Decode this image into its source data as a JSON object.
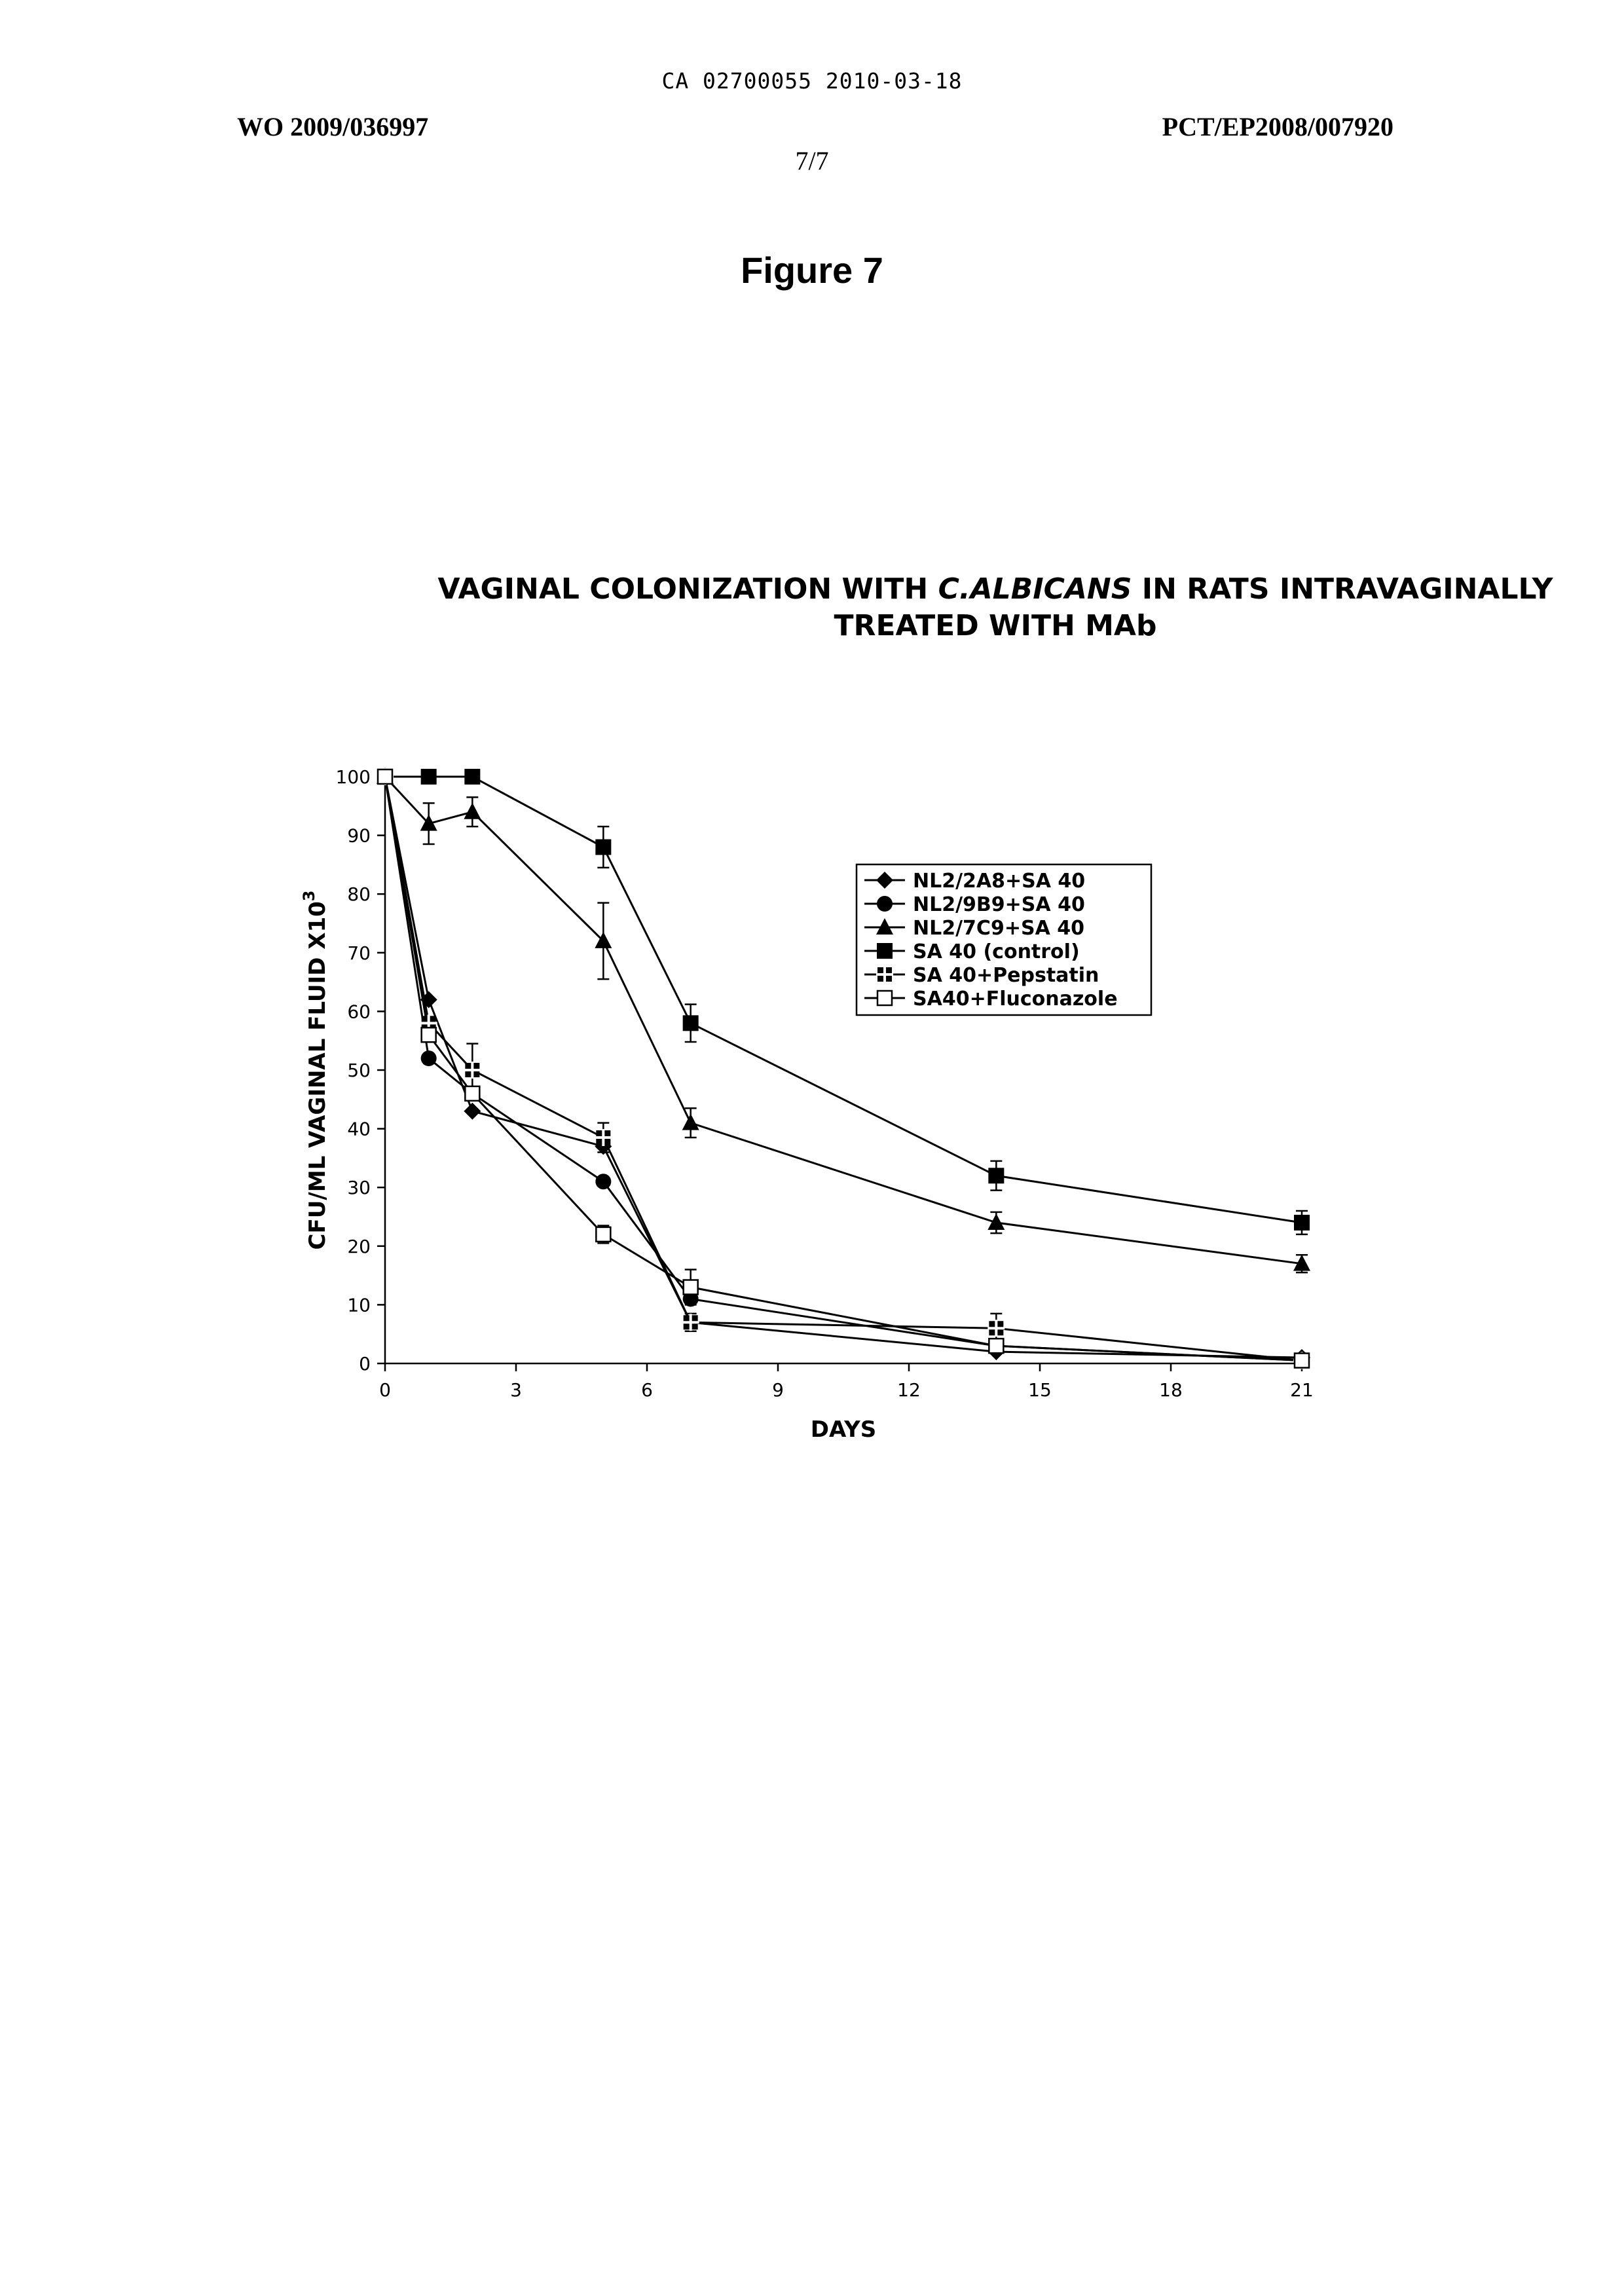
{
  "header": {
    "ca_line": "CA 02700055 2010-03-18",
    "wo_number": "WO 2009/036997",
    "pct_number": "PCT/EP2008/007920",
    "page_number": "7/7"
  },
  "figure": {
    "label": "Figure 7",
    "title_part1": "VAGINAL COLONIZATION WITH ",
    "title_italic": "C.ALBICANS",
    "title_part2": " IN RATS INTRAVAGINALLY",
    "title_line2": "TREATED WITH MAb"
  },
  "chart_data": {
    "type": "line",
    "title": "VAGINAL COLONIZATION WITH C.ALBICANS IN RATS INTRAVAGINALLY TREATED WITH MAb",
    "xlabel": "DAYS",
    "ylabel": "CFU/ML VAGINAL FLUID X10",
    "ylabel_superscript": "3",
    "xlim": [
      0,
      21
    ],
    "ylim": [
      0,
      100
    ],
    "xticks": [
      0,
      3,
      6,
      9,
      12,
      15,
      18,
      21
    ],
    "yticks": [
      0,
      10,
      20,
      30,
      40,
      50,
      60,
      70,
      80,
      90,
      100
    ],
    "grid": false,
    "legend_position": "top-right",
    "series": [
      {
        "name": "NL2/2A8+SA 40",
        "marker": "diamond",
        "x": [
          0,
          1,
          2,
          5,
          7,
          14,
          21
        ],
        "y": [
          100,
          62,
          43,
          37,
          7,
          2,
          1
        ]
      },
      {
        "name": "NL2/9B9+SA 40",
        "marker": "circle",
        "x": [
          0,
          1,
          2,
          5,
          7,
          14,
          21
        ],
        "y": [
          100,
          52,
          46,
          31,
          11,
          3,
          0.5
        ]
      },
      {
        "name": "NL2/7C9+SA 40",
        "marker": "triangle",
        "x": [
          0,
          1,
          2,
          5,
          7,
          14,
          21
        ],
        "y": [
          100,
          92,
          94,
          72,
          41,
          24,
          17
        ],
        "err": [
          0,
          3.5,
          2.5,
          6.5,
          2.5,
          1.8,
          1.5
        ]
      },
      {
        "name": "SA 40 (control)",
        "marker": "square",
        "x": [
          0,
          1,
          2,
          5,
          7,
          14,
          21
        ],
        "y": [
          100,
          100,
          100,
          88,
          58,
          32,
          24
        ],
        "err": [
          0,
          0,
          0,
          3.5,
          3.2,
          2.5,
          2
        ]
      },
      {
        "name": "SA 40+Pepstatin",
        "marker": "cross-square",
        "x": [
          0,
          1,
          2,
          5,
          7,
          14,
          21
        ],
        "y": [
          100,
          58,
          50,
          38.5,
          7,
          6,
          0.5
        ],
        "err": [
          0,
          0,
          4.5,
          2.5,
          1.5,
          2.5,
          0
        ]
      },
      {
        "name": "SA40+Fluconazole",
        "marker": "open-square",
        "x": [
          0,
          1,
          2,
          5,
          7,
          14,
          21
        ],
        "y": [
          100,
          56,
          46,
          22,
          13,
          3,
          0.5
        ],
        "err": [
          0,
          0,
          0,
          1.5,
          3,
          0,
          0
        ]
      }
    ]
  }
}
